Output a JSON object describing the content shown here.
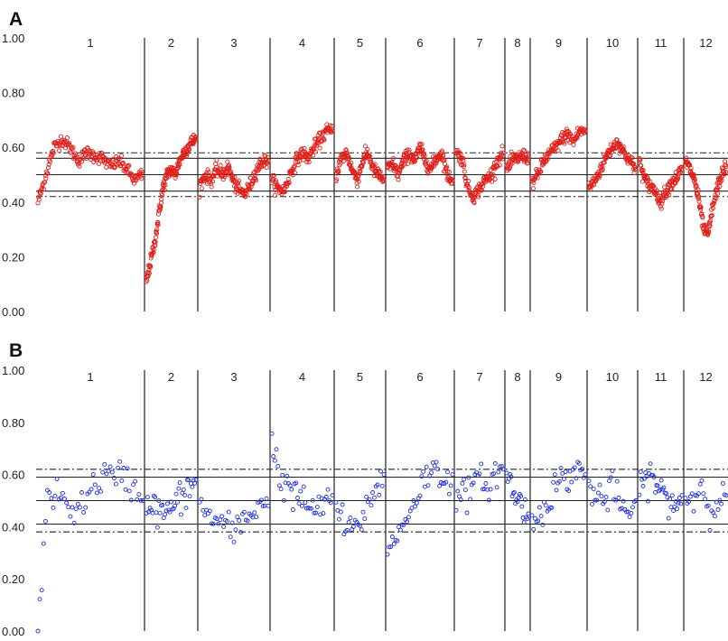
{
  "chart_data": [
    {
      "panel": "A",
      "type": "scatter",
      "ylim": [
        0,
        1
      ],
      "yticks": [
        "0.00",
        "0.20",
        "0.40",
        "0.60",
        "0.80",
        "1.00"
      ],
      "chromosomes": [
        "1",
        "2",
        "3",
        "4",
        "5",
        "6",
        "7",
        "8",
        "9",
        "10",
        "11",
        "12"
      ],
      "reference_lines": [
        {
          "style": "solid",
          "y": 0.5
        },
        {
          "style": "solid",
          "y": 0.56
        },
        {
          "style": "solid",
          "y": 0.44
        },
        {
          "style": "dashdot",
          "y": 0.58
        },
        {
          "style": "dashdot",
          "y": 0.42
        }
      ],
      "marker_color": "#e0201b",
      "series": [
        {
          "chromosome": "1",
          "trend": [
            0.4,
            0.5,
            0.6,
            0.63,
            0.6,
            0.55,
            0.58,
            0.57,
            0.56,
            0.53,
            0.55,
            0.52,
            0.48,
            0.5
          ]
        },
        {
          "chromosome": "2",
          "trend": [
            0.11,
            0.18,
            0.25,
            0.35,
            0.45,
            0.5,
            0.52,
            0.5,
            0.55,
            0.58,
            0.6,
            0.62,
            0.63
          ]
        },
        {
          "chromosome": "3",
          "trend": [
            0.46,
            0.5,
            0.48,
            0.52,
            0.5,
            0.53,
            0.47,
            0.44,
            0.43,
            0.47,
            0.52,
            0.55,
            0.55
          ]
        },
        {
          "chromosome": "4",
          "trend": [
            0.48,
            0.45,
            0.44,
            0.5,
            0.55,
            0.58,
            0.56,
            0.6,
            0.63,
            0.66,
            0.66
          ]
        },
        {
          "chromosome": "5",
          "trend": [
            0.5,
            0.56,
            0.58,
            0.52,
            0.48,
            0.55,
            0.58,
            0.52,
            0.5,
            0.48
          ]
        },
        {
          "chromosome": "6",
          "trend": [
            0.52,
            0.54,
            0.5,
            0.55,
            0.58,
            0.55,
            0.6,
            0.55,
            0.52,
            0.56,
            0.58,
            0.5,
            0.48
          ]
        },
        {
          "chromosome": "7",
          "trend": [
            0.58,
            0.56,
            0.45,
            0.42,
            0.45,
            0.48,
            0.5,
            0.55,
            0.58
          ]
        },
        {
          "chromosome": "8",
          "trend": [
            0.52,
            0.55,
            0.56,
            0.57,
            0.56
          ]
        },
        {
          "chromosome": "9",
          "trend": [
            0.47,
            0.5,
            0.55,
            0.58,
            0.6,
            0.63,
            0.65,
            0.62,
            0.66,
            0.66
          ]
        },
        {
          "chromosome": "10",
          "trend": [
            0.45,
            0.48,
            0.52,
            0.57,
            0.6,
            0.62,
            0.58,
            0.55,
            0.52
          ]
        },
        {
          "chromosome": "11",
          "trend": [
            0.55,
            0.48,
            0.46,
            0.44,
            0.4,
            0.44,
            0.47,
            0.49,
            0.52
          ]
        },
        {
          "chromosome": "12",
          "trend": [
            0.55,
            0.52,
            0.48,
            0.4,
            0.3,
            0.28,
            0.38,
            0.45,
            0.5,
            0.53
          ]
        }
      ]
    },
    {
      "panel": "B",
      "type": "scatter",
      "ylim": [
        0,
        1
      ],
      "yticks": [
        "0.00",
        "0.20",
        "0.40",
        "0.60",
        "0.80",
        "1.00"
      ],
      "chromosomes": [
        "1",
        "2",
        "3",
        "4",
        "5",
        "6",
        "7",
        "8",
        "9",
        "10",
        "11",
        "12"
      ],
      "reference_lines": [
        {
          "style": "solid",
          "y": 0.5
        },
        {
          "style": "solid",
          "y": 0.59
        },
        {
          "style": "solid",
          "y": 0.41
        },
        {
          "style": "dashdot",
          "y": 0.62
        },
        {
          "style": "dashdot",
          "y": 0.38
        }
      ],
      "marker_color": "#1f2fe0",
      "series": [
        {
          "chromosome": "1",
          "trend": [
            0.0,
            0.5,
            0.53,
            0.48,
            0.47,
            0.5,
            0.56,
            0.6,
            0.58,
            0.6,
            0.55,
            0.5
          ]
        },
        {
          "chromosome": "2",
          "trend": [
            0.5,
            0.48,
            0.46,
            0.45,
            0.47,
            0.5,
            0.52,
            0.55,
            0.58
          ]
        },
        {
          "chromosome": "3",
          "trend": [
            0.48,
            0.45,
            0.42,
            0.4,
            0.38,
            0.42,
            0.45,
            0.5,
            0.48
          ]
        },
        {
          "chromosome": "4",
          "trend": [
            0.75,
            0.58,
            0.56,
            0.52,
            0.5,
            0.48,
            0.45,
            0.5,
            0.52
          ]
        },
        {
          "chromosome": "5",
          "trend": [
            0.48,
            0.4,
            0.38,
            0.42,
            0.48,
            0.55,
            0.6
          ]
        },
        {
          "chromosome": "6",
          "trend": [
            0.3,
            0.35,
            0.42,
            0.48,
            0.55,
            0.6,
            0.62,
            0.58,
            0.6
          ]
        },
        {
          "chromosome": "7",
          "trend": [
            0.5,
            0.52,
            0.55,
            0.58,
            0.56,
            0.6,
            0.62
          ]
        },
        {
          "chromosome": "8",
          "trend": [
            0.6,
            0.55,
            0.5,
            0.48,
            0.45
          ]
        },
        {
          "chromosome": "9",
          "trend": [
            0.4,
            0.45,
            0.5,
            0.55,
            0.58,
            0.6,
            0.62,
            0.6
          ]
        },
        {
          "chromosome": "10",
          "trend": [
            0.55,
            0.52,
            0.5,
            0.55,
            0.48,
            0.45,
            0.5
          ]
        },
        {
          "chromosome": "11",
          "trend": [
            0.52,
            0.58,
            0.6,
            0.55,
            0.52,
            0.5,
            0.48,
            0.52
          ]
        },
        {
          "chromosome": "12",
          "trend": [
            0.5,
            0.52,
            0.55,
            0.48,
            0.5,
            0.52
          ]
        }
      ]
    }
  ]
}
